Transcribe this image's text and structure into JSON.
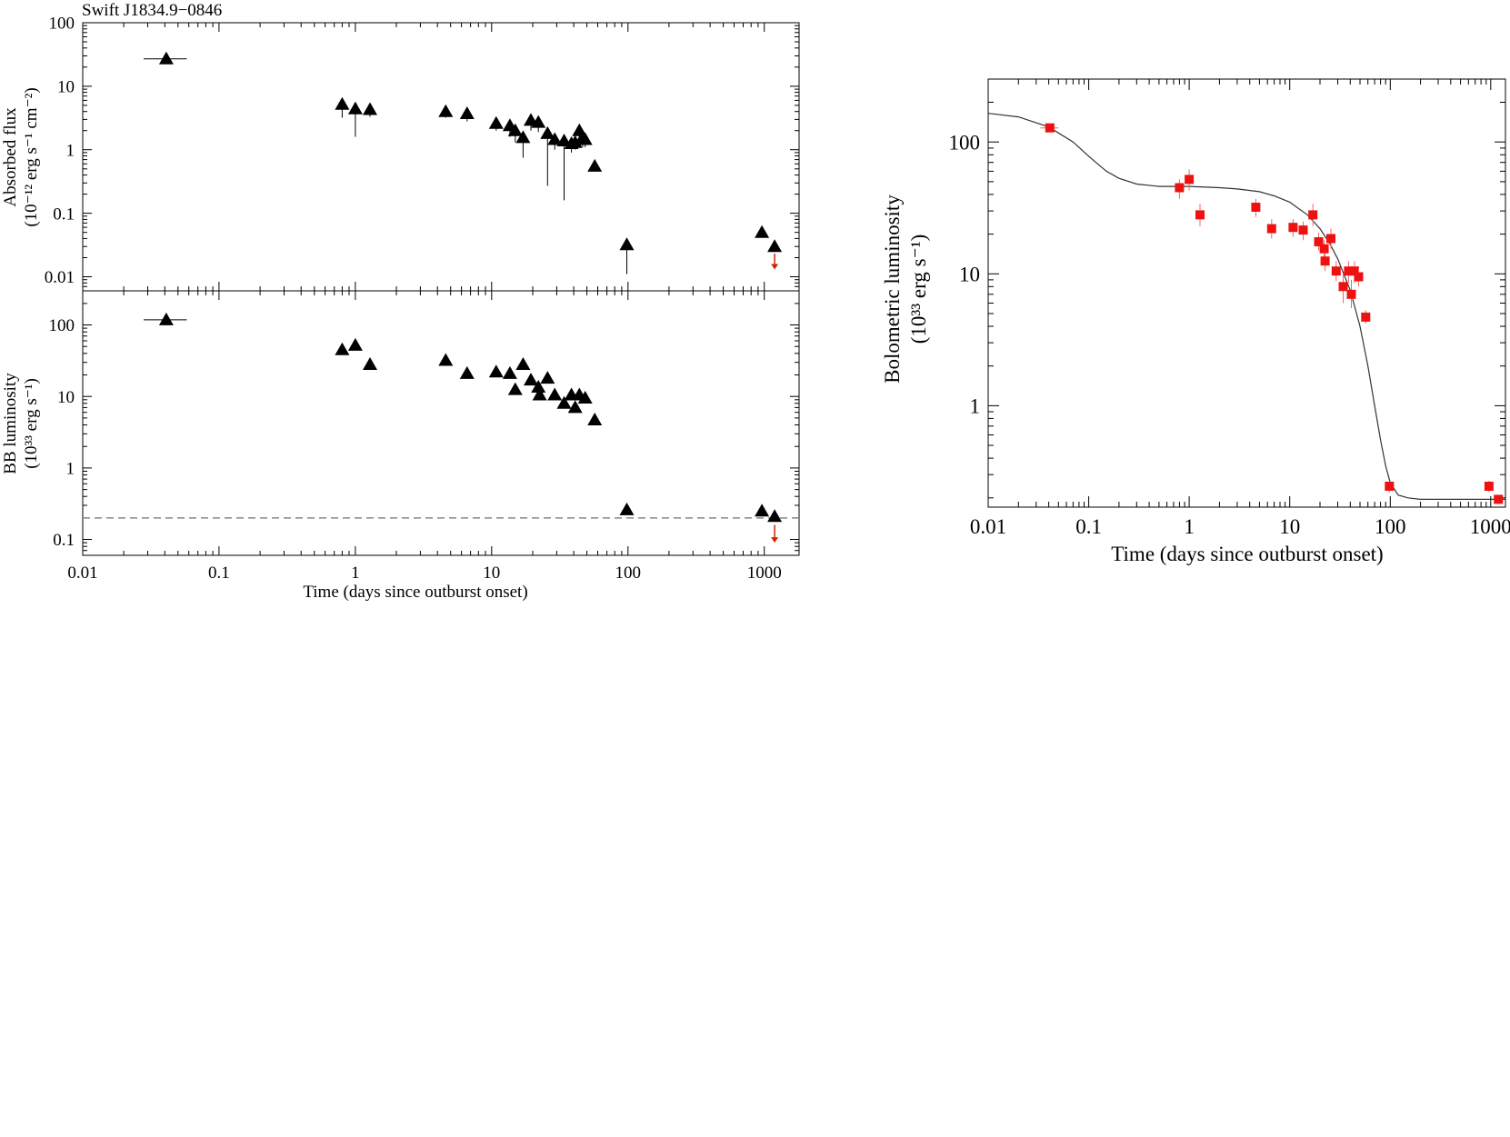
{
  "figure": {
    "left_title": "Swift J1834.9−0846",
    "colors": {
      "black": "#000000",
      "marker_red": "#ee1111",
      "upper_limit": "#cc2200",
      "errbar_red": "#ee6666",
      "dashed": "#888888",
      "model": "#333333"
    }
  },
  "chart_data": [
    {
      "id": "absorbed-flux",
      "type": "scatter",
      "title": "Swift J1834.9−0846",
      "xlabel": "",
      "ylabel_line1": "Absorbed flux",
      "ylabel_line2": "(10⁻¹² erg s⁻¹ cm⁻²)",
      "xscale": "log",
      "yscale": "log",
      "xlim": [
        0.01,
        1800
      ],
      "ylim": [
        0.006,
        100
      ],
      "yticks": [
        0.01,
        0.1,
        1,
        10,
        100
      ],
      "ytick_labels": [
        "0.01",
        "0.1",
        "1",
        "10",
        "100"
      ],
      "marker": "triangle",
      "points": [
        {
          "x": 0.041,
          "y": 27,
          "xerr": [
            0.028,
            0.058
          ]
        },
        {
          "x": 0.8,
          "y": 5.2,
          "ylo": 3.2
        },
        {
          "x": 1.0,
          "y": 4.4,
          "ylo": 1.6
        },
        {
          "x": 1.28,
          "y": 4.3,
          "ylo": 3.3
        },
        {
          "x": 4.6,
          "y": 4.0,
          "ylo": 3.2
        },
        {
          "x": 6.6,
          "y": 3.7,
          "ylo": 2.8
        },
        {
          "x": 10.8,
          "y": 2.6,
          "ylo": 2.0
        },
        {
          "x": 13.6,
          "y": 2.4,
          "ylo": 1.6
        },
        {
          "x": 14.9,
          "y": 2.0,
          "ylo": 1.3
        },
        {
          "x": 17.0,
          "y": 1.55,
          "ylo": 0.75
        },
        {
          "x": 19.4,
          "y": 2.9,
          "ylo": 2.0
        },
        {
          "x": 22.0,
          "y": 2.7,
          "ylo": 1.9
        },
        {
          "x": 25.7,
          "y": 1.8,
          "ylo": 0.27
        },
        {
          "x": 29.0,
          "y": 1.45,
          "ylo": 1.0
        },
        {
          "x": 34.0,
          "y": 1.38,
          "ylo": 0.16
        },
        {
          "x": 38.5,
          "y": 1.25,
          "ylo": 0.9
        },
        {
          "x": 41.0,
          "y": 1.3,
          "ylo": 1.0
        },
        {
          "x": 44.0,
          "y": 2.0,
          "ylo": 1.5
        },
        {
          "x": 46.5,
          "y": 1.55,
          "ylo": 1.1
        },
        {
          "x": 48.5,
          "y": 1.45,
          "ylo": 1.1
        },
        {
          "x": 57.0,
          "y": 0.55
        },
        {
          "x": 98.0,
          "y": 0.032,
          "ylo": 0.011
        },
        {
          "x": 960.0,
          "y": 0.05
        },
        {
          "x": 1190.0,
          "y": 0.03
        }
      ],
      "upper_limits": [
        {
          "x": 1190.0,
          "y": 0.023,
          "ylo": 0.013
        }
      ]
    },
    {
      "id": "bb-luminosity",
      "type": "scatter",
      "xlabel": "Time (days since outburst onset)",
      "ylabel_line1": "BB luminosity",
      "ylabel_line2": "(10³³ erg s⁻¹)",
      "xscale": "log",
      "yscale": "log",
      "xlim": [
        0.01,
        1800
      ],
      "ylim": [
        0.06,
        300
      ],
      "xticks": [
        0.01,
        0.1,
        1,
        10,
        100,
        1000
      ],
      "xtick_labels": [
        "0.01",
        "0.1",
        "1",
        "10",
        "100",
        "1000"
      ],
      "yticks": [
        0.1,
        1,
        10,
        100
      ],
      "ytick_labels": [
        "0.1",
        "1",
        "10",
        "100"
      ],
      "marker": "triangle",
      "points": [
        {
          "x": 0.041,
          "y": 118,
          "xerr": [
            0.028,
            0.058
          ]
        },
        {
          "x": 0.8,
          "y": 45
        },
        {
          "x": 1.0,
          "y": 52
        },
        {
          "x": 1.28,
          "y": 28
        },
        {
          "x": 4.6,
          "y": 32
        },
        {
          "x": 6.6,
          "y": 21
        },
        {
          "x": 10.8,
          "y": 22
        },
        {
          "x": 13.6,
          "y": 21
        },
        {
          "x": 14.9,
          "y": 12.5
        },
        {
          "x": 17.0,
          "y": 28
        },
        {
          "x": 19.4,
          "y": 17
        },
        {
          "x": 22.0,
          "y": 13.5
        },
        {
          "x": 22.5,
          "y": 10.5
        },
        {
          "x": 25.7,
          "y": 18
        },
        {
          "x": 29.0,
          "y": 10.5
        },
        {
          "x": 34.0,
          "y": 8.0
        },
        {
          "x": 38.5,
          "y": 10.5
        },
        {
          "x": 41.0,
          "y": 7.0
        },
        {
          "x": 44.0,
          "y": 10.5
        },
        {
          "x": 48.5,
          "y": 9.5
        },
        {
          "x": 57.0,
          "y": 4.7
        },
        {
          "x": 98.0,
          "y": 0.26
        },
        {
          "x": 960.0,
          "y": 0.25
        },
        {
          "x": 1190.0,
          "y": 0.21
        }
      ],
      "upper_limits": [
        {
          "x": 1190.0,
          "y": 0.16,
          "ylo": 0.09
        }
      ],
      "reference_line": {
        "y": 0.2,
        "style": "dashed"
      }
    },
    {
      "id": "bolometric-luminosity",
      "type": "scatter",
      "xlabel": "Time (days since outburst onset)",
      "ylabel_line1": "Bolometric luminosity",
      "ylabel_line2": "(10³³ erg s⁻¹)",
      "xscale": "log",
      "yscale": "log",
      "xlim": [
        0.01,
        1400
      ],
      "ylim": [
        0.17,
        300
      ],
      "xticks": [
        0.01,
        0.1,
        1,
        10,
        100,
        1000
      ],
      "xtick_labels": [
        "0.01",
        "0.1",
        "1",
        "10",
        "100",
        "1000"
      ],
      "yticks": [
        1,
        10,
        100
      ],
      "ytick_labels": [
        "1",
        "10",
        "100"
      ],
      "marker": "square",
      "points": [
        {
          "x": 0.041,
          "y": 128,
          "xerr": [
            0.033,
            0.05
          ],
          "yerr": [
            120,
            137
          ]
        },
        {
          "x": 0.8,
          "y": 45,
          "yerr": [
            37,
            52
          ]
        },
        {
          "x": 1.0,
          "y": 52,
          "yerr": [
            43,
            62
          ]
        },
        {
          "x": 1.28,
          "y": 28,
          "yerr": [
            23,
            34
          ]
        },
        {
          "x": 4.6,
          "y": 32,
          "yerr": [
            27,
            37
          ]
        },
        {
          "x": 6.6,
          "y": 22,
          "yerr": [
            18.5,
            26
          ]
        },
        {
          "x": 10.8,
          "y": 22.5,
          "yerr": [
            19,
            26
          ]
        },
        {
          "x": 13.6,
          "y": 21.5,
          "yerr": [
            18,
            25
          ]
        },
        {
          "x": 17.0,
          "y": 28,
          "yerr": [
            23,
            34
          ]
        },
        {
          "x": 19.4,
          "y": 17.5,
          "yerr": [
            15,
            20.5
          ]
        },
        {
          "x": 22.0,
          "y": 15.5,
          "yerr": [
            13,
            18
          ]
        },
        {
          "x": 22.5,
          "y": 12.5,
          "yerr": [
            10.5,
            14.5
          ]
        },
        {
          "x": 25.7,
          "y": 18.5,
          "yerr": [
            15.5,
            22
          ]
        },
        {
          "x": 29.0,
          "y": 10.5,
          "yerr": [
            8.8,
            12.5
          ]
        },
        {
          "x": 34.0,
          "y": 8.0,
          "yerr": [
            6.0,
            10
          ]
        },
        {
          "x": 38.5,
          "y": 10.5,
          "yerr": [
            8.5,
            12.5
          ]
        },
        {
          "x": 41.0,
          "y": 7.0,
          "yerr": [
            5.5,
            9
          ]
        },
        {
          "x": 44.0,
          "y": 10.5,
          "yerr": [
            8.5,
            12.5
          ]
        },
        {
          "x": 48.5,
          "y": 9.5,
          "yerr": [
            8,
            11
          ]
        },
        {
          "x": 57.0,
          "y": 4.7,
          "yerr": [
            4.2,
            5.3
          ]
        },
        {
          "x": 98.0,
          "y": 0.245,
          "yerr": [
            0.22,
            0.27
          ]
        },
        {
          "x": 960.0,
          "y": 0.245,
          "yerr": [
            0.22,
            0.27
          ]
        },
        {
          "x": 1190.0,
          "y": 0.195,
          "yerr": [
            0.18,
            0.21
          ]
        }
      ],
      "model_curve": {
        "x": [
          0.01,
          0.02,
          0.04,
          0.07,
          0.1,
          0.15,
          0.2,
          0.3,
          0.5,
          0.8,
          1,
          2,
          3,
          5,
          7,
          10,
          15,
          20,
          25,
          30,
          40,
          50,
          60,
          70,
          80,
          90,
          100,
          120,
          150,
          200,
          500,
          1000,
          1400
        ],
        "y": [
          165,
          155,
          130,
          100,
          78,
          60,
          53,
          48,
          46,
          46,
          46,
          45,
          44,
          42,
          39,
          35,
          28,
          22,
          17,
          13,
          7.5,
          4.0,
          2.0,
          1.0,
          0.55,
          0.35,
          0.26,
          0.21,
          0.2,
          0.195,
          0.195,
          0.195,
          0.195
        ]
      }
    }
  ]
}
